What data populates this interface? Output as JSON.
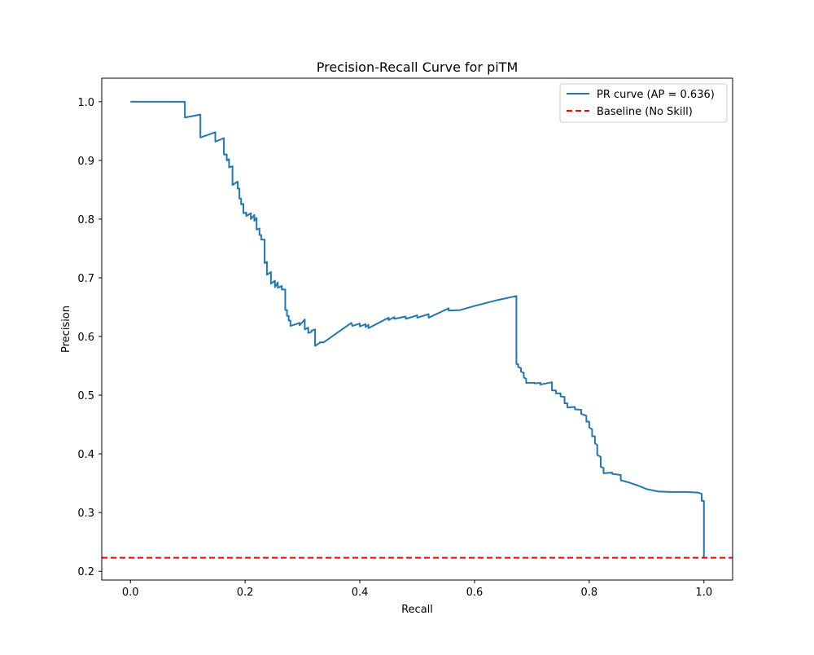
{
  "chart_data": {
    "type": "line",
    "title": "Precision-Recall Curve for piTM",
    "xlabel": "Recall",
    "ylabel": "Precision",
    "xlim": [
      -0.05,
      1.05
    ],
    "ylim": [
      0.185,
      1.04
    ],
    "xticks": [
      0.0,
      0.2,
      0.4,
      0.6,
      0.8,
      1.0
    ],
    "xtick_labels": [
      "0.0",
      "0.2",
      "0.4",
      "0.6",
      "0.8",
      "1.0"
    ],
    "yticks": [
      0.2,
      0.3,
      0.4,
      0.5,
      0.6,
      0.7,
      0.8,
      0.9,
      1.0
    ],
    "ytick_labels": [
      "0.2",
      "0.3",
      "0.4",
      "0.5",
      "0.6",
      "0.7",
      "0.8",
      "0.9",
      "1.0"
    ],
    "grid": false,
    "legend_position": "top-right",
    "series": [
      {
        "name": "PR curve (AP = 0.636)",
        "style": "solid",
        "color": "#1f77b4",
        "points": [
          [
            0.0,
            1.0
          ],
          [
            0.095,
            1.0
          ],
          [
            0.095,
            0.973
          ],
          [
            0.122,
            0.978
          ],
          [
            0.122,
            0.939
          ],
          [
            0.148,
            0.948
          ],
          [
            0.148,
            0.932
          ],
          [
            0.163,
            0.938
          ],
          [
            0.163,
            0.91
          ],
          [
            0.168,
            0.91
          ],
          [
            0.168,
            0.9
          ],
          [
            0.172,
            0.902
          ],
          [
            0.172,
            0.888
          ],
          [
            0.178,
            0.89
          ],
          [
            0.178,
            0.858
          ],
          [
            0.187,
            0.864
          ],
          [
            0.187,
            0.852
          ],
          [
            0.19,
            0.852
          ],
          [
            0.19,
            0.835
          ],
          [
            0.193,
            0.835
          ],
          [
            0.193,
            0.825
          ],
          [
            0.197,
            0.826
          ],
          [
            0.197,
            0.81
          ],
          [
            0.202,
            0.811
          ],
          [
            0.202,
            0.805
          ],
          [
            0.21,
            0.81
          ],
          [
            0.21,
            0.8
          ],
          [
            0.216,
            0.807
          ],
          [
            0.216,
            0.797
          ],
          [
            0.22,
            0.802
          ],
          [
            0.22,
            0.782
          ],
          [
            0.225,
            0.784
          ],
          [
            0.225,
            0.773
          ],
          [
            0.228,
            0.773
          ],
          [
            0.228,
            0.765
          ],
          [
            0.234,
            0.765
          ],
          [
            0.234,
            0.725
          ],
          [
            0.238,
            0.727
          ],
          [
            0.238,
            0.705
          ],
          [
            0.245,
            0.71
          ],
          [
            0.245,
            0.69
          ],
          [
            0.252,
            0.695
          ],
          [
            0.252,
            0.684
          ],
          [
            0.257,
            0.692
          ],
          [
            0.257,
            0.683
          ],
          [
            0.264,
            0.686
          ],
          [
            0.264,
            0.68
          ],
          [
            0.27,
            0.68
          ],
          [
            0.27,
            0.645
          ],
          [
            0.273,
            0.645
          ],
          [
            0.273,
            0.635
          ],
          [
            0.276,
            0.635
          ],
          [
            0.276,
            0.627
          ],
          [
            0.279,
            0.627
          ],
          [
            0.279,
            0.618
          ],
          [
            0.295,
            0.623
          ],
          [
            0.295,
            0.619
          ],
          [
            0.304,
            0.629
          ],
          [
            0.304,
            0.612
          ],
          [
            0.31,
            0.615
          ],
          [
            0.31,
            0.606
          ],
          [
            0.316,
            0.608
          ],
          [
            0.316,
            0.61
          ],
          [
            0.322,
            0.612
          ],
          [
            0.322,
            0.584
          ],
          [
            0.33,
            0.589
          ],
          [
            0.33,
            0.59
          ],
          [
            0.337,
            0.59
          ],
          [
            0.385,
            0.623
          ],
          [
            0.387,
            0.618
          ],
          [
            0.4,
            0.622
          ],
          [
            0.4,
            0.617
          ],
          [
            0.41,
            0.621
          ],
          [
            0.41,
            0.616
          ],
          [
            0.415,
            0.62
          ],
          [
            0.415,
            0.614
          ],
          [
            0.45,
            0.632
          ],
          [
            0.45,
            0.628
          ],
          [
            0.46,
            0.633
          ],
          [
            0.46,
            0.63
          ],
          [
            0.48,
            0.634
          ],
          [
            0.48,
            0.63
          ],
          [
            0.5,
            0.636
          ],
          [
            0.5,
            0.632
          ],
          [
            0.52,
            0.638
          ],
          [
            0.52,
            0.632
          ],
          [
            0.555,
            0.648
          ],
          [
            0.555,
            0.644
          ],
          [
            0.575,
            0.645
          ],
          [
            0.6,
            0.652
          ],
          [
            0.64,
            0.662
          ],
          [
            0.673,
            0.669
          ],
          [
            0.673,
            0.553
          ],
          [
            0.676,
            0.553
          ],
          [
            0.676,
            0.548
          ],
          [
            0.681,
            0.546
          ],
          [
            0.681,
            0.54
          ],
          [
            0.686,
            0.538
          ],
          [
            0.686,
            0.53
          ],
          [
            0.69,
            0.528
          ],
          [
            0.69,
            0.521
          ],
          [
            0.705,
            0.521
          ],
          [
            0.705,
            0.52
          ],
          [
            0.715,
            0.521
          ],
          [
            0.715,
            0.518
          ],
          [
            0.735,
            0.522
          ],
          [
            0.735,
            0.508
          ],
          [
            0.742,
            0.508
          ],
          [
            0.742,
            0.503
          ],
          [
            0.75,
            0.503
          ],
          [
            0.75,
            0.498
          ],
          [
            0.757,
            0.497
          ],
          [
            0.757,
            0.486
          ],
          [
            0.762,
            0.486
          ],
          [
            0.762,
            0.479
          ],
          [
            0.775,
            0.48
          ],
          [
            0.775,
            0.476
          ],
          [
            0.786,
            0.475
          ],
          [
            0.786,
            0.468
          ],
          [
            0.795,
            0.465
          ],
          [
            0.795,
            0.455
          ],
          [
            0.8,
            0.455
          ],
          [
            0.8,
            0.445
          ],
          [
            0.805,
            0.442
          ],
          [
            0.805,
            0.43
          ],
          [
            0.81,
            0.43
          ],
          [
            0.81,
            0.418
          ],
          [
            0.814,
            0.415
          ],
          [
            0.814,
            0.398
          ],
          [
            0.82,
            0.395
          ],
          [
            0.82,
            0.378
          ],
          [
            0.825,
            0.376
          ],
          [
            0.825,
            0.367
          ],
          [
            0.84,
            0.368
          ],
          [
            0.84,
            0.366
          ],
          [
            0.855,
            0.364
          ],
          [
            0.855,
            0.355
          ],
          [
            0.87,
            0.351
          ],
          [
            0.885,
            0.346
          ],
          [
            0.9,
            0.34
          ],
          [
            0.92,
            0.336
          ],
          [
            0.94,
            0.335
          ],
          [
            0.97,
            0.335
          ],
          [
            0.99,
            0.334
          ],
          [
            0.996,
            0.332
          ],
          [
            0.996,
            0.32
          ],
          [
            1.0,
            0.32
          ],
          [
            1.0,
            0.222
          ]
        ]
      },
      {
        "name": "Baseline (No Skill)",
        "style": "dashed",
        "color": "#ff0000",
        "y_constant": 0.223
      }
    ]
  }
}
